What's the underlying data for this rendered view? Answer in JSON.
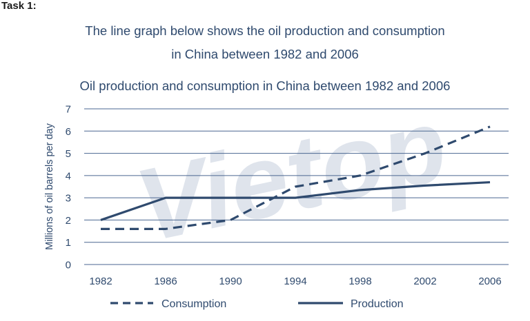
{
  "header": {
    "task_label": "Task 1:",
    "intro_line1": "The line graph below shows  the oil production and consumption",
    "intro_line2": "in China between 1982 and 2006"
  },
  "watermark_text": "Vietop",
  "chart_data": {
    "type": "line",
    "title": "Oil production and consumption in China between 1982 and 2006",
    "xlabel": "",
    "ylabel": "Millions of oil barrels per day",
    "x": [
      1982,
      1986,
      1990,
      1994,
      1998,
      2002,
      2006
    ],
    "ylim": [
      0,
      7
    ],
    "yticks": [
      0,
      1,
      2,
      3,
      4,
      5,
      6,
      7
    ],
    "grid": true,
    "legend_position": "bottom",
    "series": [
      {
        "name": "Consumption",
        "style": "dashed",
        "color": "#2f4a6e",
        "values": [
          1.6,
          1.6,
          2.0,
          3.5,
          4.0,
          5.0,
          6.2
        ]
      },
      {
        "name": "Production",
        "style": "solid",
        "color": "#2f4a6e",
        "values": [
          2.0,
          3.0,
          3.0,
          3.0,
          3.35,
          3.55,
          3.7
        ]
      }
    ]
  }
}
